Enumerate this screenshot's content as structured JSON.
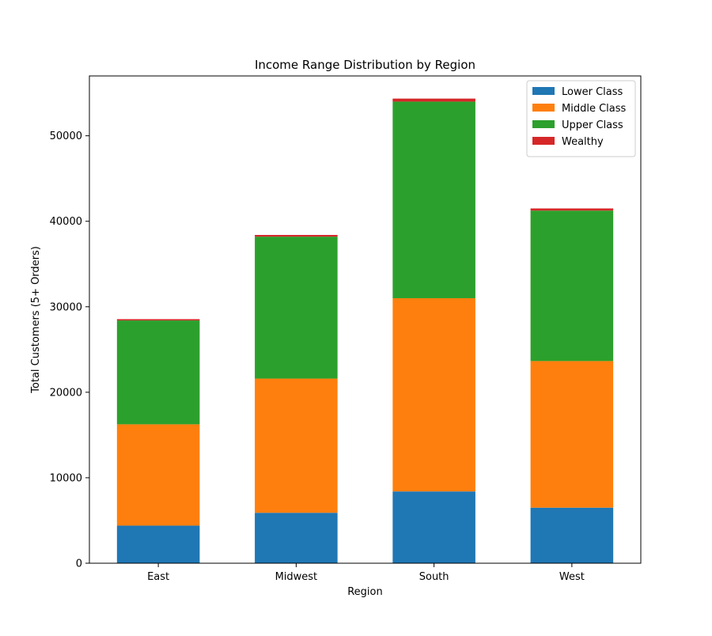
{
  "chart_data": {
    "type": "bar",
    "stacked": true,
    "title": "Income Range Distribution by Region",
    "xlabel": "Region",
    "ylabel": "Total Customers (5+ Orders)",
    "categories": [
      "East",
      "Midwest",
      "South",
      "West"
    ],
    "series": [
      {
        "name": "Lower Class",
        "color": "#1f77b4",
        "values": [
          4400,
          5900,
          8400,
          6500
        ]
      },
      {
        "name": "Middle Class",
        "color": "#ff7f0e",
        "values": [
          11850,
          15700,
          22600,
          17150
        ]
      },
      {
        "name": "Upper Class",
        "color": "#2ca02c",
        "values": [
          12150,
          16600,
          23000,
          17600
        ]
      },
      {
        "name": "Wealthy",
        "color": "#d62728",
        "values": [
          150,
          200,
          350,
          250
        ]
      }
    ],
    "ylim": [
      0,
      57000
    ],
    "yticks": [
      0,
      10000,
      20000,
      30000,
      40000,
      50000
    ],
    "ytick_labels": [
      "0",
      "10000",
      "20000",
      "30000",
      "40000",
      "50000"
    ],
    "legend_position": "top-right",
    "grid": false
  }
}
